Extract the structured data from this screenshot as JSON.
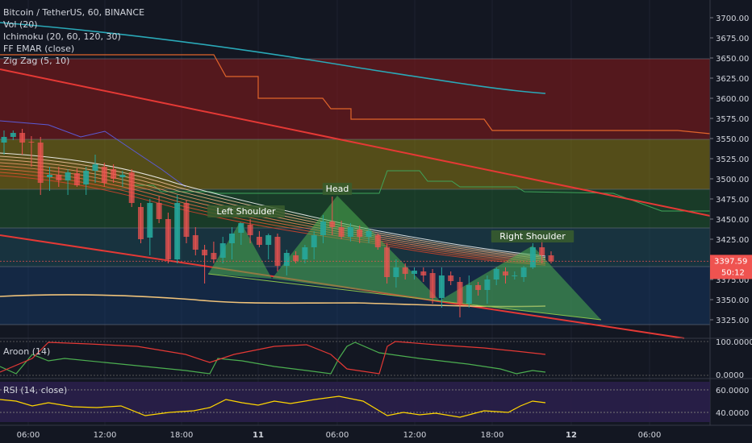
{
  "header": {
    "symbol_line": "Bitcoin / TetherUS, 60, BINANCE",
    "indicators": [
      "Vol (20)",
      "Ichimoku (20, 60, 120, 30)",
      "FF EMAR (close)",
      "Zig Zag (5, 10)"
    ]
  },
  "annotations": {
    "left_shoulder": "Left Shoulder",
    "head": "Head",
    "right_shoulder": "Right Shoulder"
  },
  "price_badge": {
    "value": "3397.59",
    "countdown": "50:12",
    "color": "#ef5350"
  },
  "panes": {
    "aroon": {
      "label": "Aroon (14)",
      "ticks": [
        "100.0000",
        "0.0000"
      ]
    },
    "rsi": {
      "label": "RSI (14, close)",
      "ticks": [
        "60.0000",
        "40.0000"
      ]
    }
  },
  "chart_data": {
    "type": "candlestick",
    "symbol": "Bitcoin / TetherUS",
    "interval": "60",
    "exchange": "BINANCE",
    "y_ticks": [
      "3700.00",
      "3675.00",
      "3650.00",
      "3625.00",
      "3600.00",
      "3575.00",
      "3550.00",
      "3525.00",
      "3500.00",
      "3475.00",
      "3450.00",
      "3425.00",
      "3400.00",
      "3375.00",
      "3350.00",
      "3325.00"
    ],
    "ylim": [
      3305,
      3712
    ],
    "x_ticks": [
      "06:00",
      "12:00",
      "18:00",
      "11",
      "06:00",
      "12:00",
      "18:00",
      "12",
      "06:00"
    ],
    "candles": [
      {
        "o": 3545,
        "h": 3560,
        "l": 3530,
        "c": 3552
      },
      {
        "o": 3552,
        "h": 3560,
        "l": 3548,
        "c": 3557
      },
      {
        "o": 3557,
        "h": 3562,
        "l": 3530,
        "c": 3545
      },
      {
        "o": 3546,
        "h": 3553,
        "l": 3515,
        "c": 3545
      },
      {
        "o": 3545,
        "h": 3552,
        "l": 3480,
        "c": 3495
      },
      {
        "o": 3502,
        "h": 3515,
        "l": 3485,
        "c": 3505
      },
      {
        "o": 3505,
        "h": 3515,
        "l": 3490,
        "c": 3498
      },
      {
        "o": 3498,
        "h": 3512,
        "l": 3480,
        "c": 3508
      },
      {
        "o": 3507,
        "h": 3513,
        "l": 3490,
        "c": 3492
      },
      {
        "o": 3493,
        "h": 3515,
        "l": 3480,
        "c": 3510
      },
      {
        "o": 3510,
        "h": 3530,
        "l": 3495,
        "c": 3518
      },
      {
        "o": 3515,
        "h": 3520,
        "l": 3490,
        "c": 3495
      },
      {
        "o": 3512,
        "h": 3518,
        "l": 3495,
        "c": 3500
      },
      {
        "o": 3502,
        "h": 3510,
        "l": 3490,
        "c": 3505
      },
      {
        "o": 3508,
        "h": 3512,
        "l": 3465,
        "c": 3470
      },
      {
        "o": 3465,
        "h": 3470,
        "l": 3420,
        "c": 3425
      },
      {
        "o": 3427,
        "h": 3475,
        "l": 3405,
        "c": 3470
      },
      {
        "o": 3470,
        "h": 3478,
        "l": 3445,
        "c": 3450
      },
      {
        "o": 3450,
        "h": 3458,
        "l": 3395,
        "c": 3400
      },
      {
        "o": 3400,
        "h": 3480,
        "l": 3395,
        "c": 3470
      },
      {
        "o": 3470,
        "h": 3473,
        "l": 3420,
        "c": 3428
      },
      {
        "o": 3430,
        "h": 3440,
        "l": 3405,
        "c": 3412
      },
      {
        "o": 3412,
        "h": 3418,
        "l": 3370,
        "c": 3405
      },
      {
        "o": 3408,
        "h": 3422,
        "l": 3395,
        "c": 3400
      },
      {
        "o": 3402,
        "h": 3428,
        "l": 3395,
        "c": 3420
      },
      {
        "o": 3420,
        "h": 3440,
        "l": 3400,
        "c": 3432
      },
      {
        "o": 3433,
        "h": 3445,
        "l": 3418,
        "c": 3445
      },
      {
        "o": 3443,
        "h": 3450,
        "l": 3420,
        "c": 3430
      },
      {
        "o": 3428,
        "h": 3435,
        "l": 3415,
        "c": 3418
      },
      {
        "o": 3418,
        "h": 3432,
        "l": 3400,
        "c": 3430
      },
      {
        "o": 3428,
        "h": 3432,
        "l": 3385,
        "c": 3392
      },
      {
        "o": 3392,
        "h": 3412,
        "l": 3380,
        "c": 3408
      },
      {
        "o": 3405,
        "h": 3410,
        "l": 3395,
        "c": 3398
      },
      {
        "o": 3400,
        "h": 3418,
        "l": 3395,
        "c": 3415
      },
      {
        "o": 3415,
        "h": 3435,
        "l": 3400,
        "c": 3430
      },
      {
        "o": 3430,
        "h": 3455,
        "l": 3420,
        "c": 3447
      },
      {
        "o": 3447,
        "h": 3478,
        "l": 3430,
        "c": 3440
      },
      {
        "o": 3440,
        "h": 3448,
        "l": 3425,
        "c": 3428
      },
      {
        "o": 3428,
        "h": 3445,
        "l": 3422,
        "c": 3440
      },
      {
        "o": 3437,
        "h": 3442,
        "l": 3420,
        "c": 3428
      },
      {
        "o": 3428,
        "h": 3438,
        "l": 3420,
        "c": 3435
      },
      {
        "o": 3430,
        "h": 3432,
        "l": 3412,
        "c": 3415
      },
      {
        "o": 3415,
        "h": 3420,
        "l": 3370,
        "c": 3378
      },
      {
        "o": 3378,
        "h": 3400,
        "l": 3365,
        "c": 3390
      },
      {
        "o": 3390,
        "h": 3395,
        "l": 3375,
        "c": 3382
      },
      {
        "o": 3382,
        "h": 3390,
        "l": 3375,
        "c": 3386
      },
      {
        "o": 3385,
        "h": 3390,
        "l": 3372,
        "c": 3380
      },
      {
        "o": 3383,
        "h": 3388,
        "l": 3345,
        "c": 3352
      },
      {
        "o": 3352,
        "h": 3390,
        "l": 3340,
        "c": 3380
      },
      {
        "o": 3380,
        "h": 3385,
        "l": 3368,
        "c": 3373
      },
      {
        "o": 3372,
        "h": 3378,
        "l": 3328,
        "c": 3345
      },
      {
        "o": 3345,
        "h": 3380,
        "l": 3340,
        "c": 3368
      },
      {
        "o": 3368,
        "h": 3372,
        "l": 3355,
        "c": 3362
      },
      {
        "o": 3362,
        "h": 3380,
        "l": 3345,
        "c": 3375
      },
      {
        "o": 3375,
        "h": 3390,
        "l": 3368,
        "c": 3388
      },
      {
        "o": 3385,
        "h": 3390,
        "l": 3370,
        "c": 3380
      },
      {
        "o": 3380,
        "h": 3385,
        "l": 3375,
        "c": 3380
      },
      {
        "o": 3378,
        "h": 3392,
        "l": 3372,
        "c": 3390
      },
      {
        "o": 3390,
        "h": 3420,
        "l": 3388,
        "c": 3415
      },
      {
        "o": 3415,
        "h": 3428,
        "l": 3395,
        "c": 3405
      },
      {
        "o": 3405,
        "h": 3410,
        "l": 3395,
        "c": 3397.59
      }
    ]
  }
}
